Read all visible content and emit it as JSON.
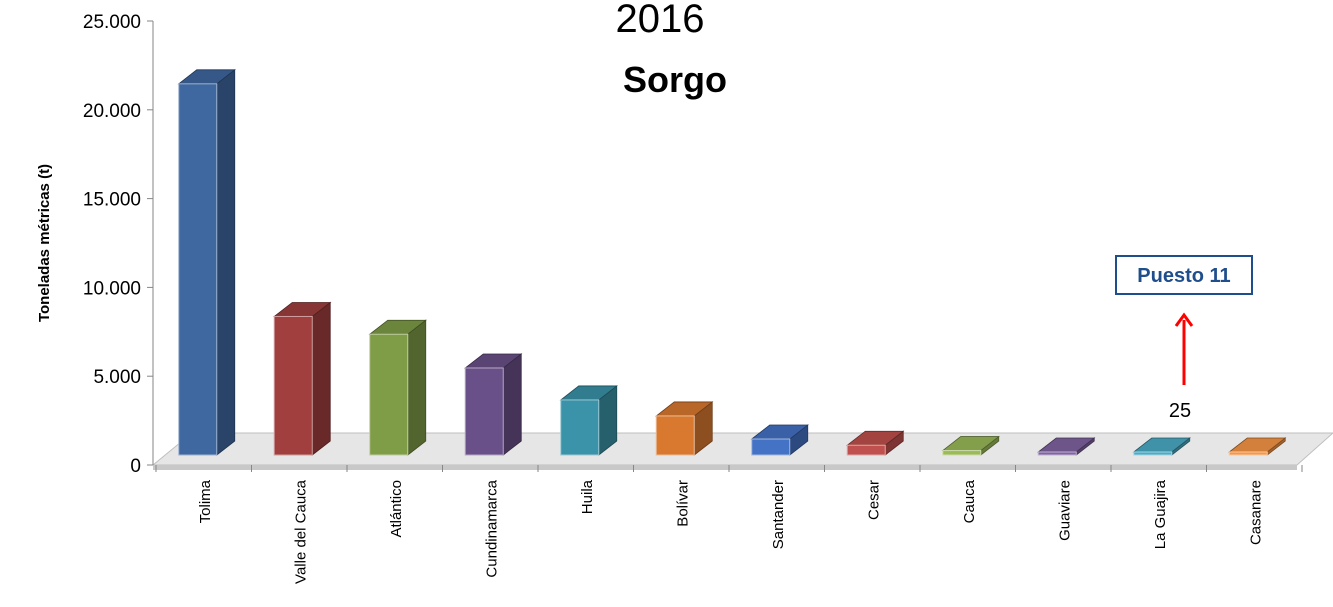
{
  "chart_data": {
    "type": "bar",
    "title_top": "2016",
    "title": "Sorgo",
    "ylabel": "Toneladas métricas (t)",
    "xlabel": "",
    "ylim": [
      0,
      25000
    ],
    "yticks": [
      0,
      5000,
      10000,
      15000,
      20000,
      25000
    ],
    "ytick_labels": [
      "0",
      "5.000",
      "10.000",
      "15.000",
      "20.000",
      "25.000"
    ],
    "categories": [
      "Tolima",
      "Valle del Cauca",
      "Atlántico",
      "Cundinamarca",
      "Huila",
      "Bolívar",
      "Santander",
      "Cesar",
      "Cauca",
      "Guaviare",
      "La Guajira",
      "Casanare"
    ],
    "values": [
      20900,
      7800,
      6800,
      4900,
      3100,
      2200,
      900,
      550,
      250,
      60,
      25,
      15
    ],
    "colors": [
      "#3f68a0",
      "#a03f3e",
      "#7f9c46",
      "#6a5088",
      "#3a93a8",
      "#d9792f",
      "#4472c4",
      "#c0504d",
      "#9bbb59",
      "#8064a2",
      "#4bacc6",
      "#f79646"
    ],
    "grid": false,
    "legend": "none",
    "annotation": {
      "label": "Puesto 11",
      "value_label": "25",
      "target_category": "La Guajira",
      "arrow_color": "#ff0000",
      "box_color": "#1f4e8c"
    }
  }
}
